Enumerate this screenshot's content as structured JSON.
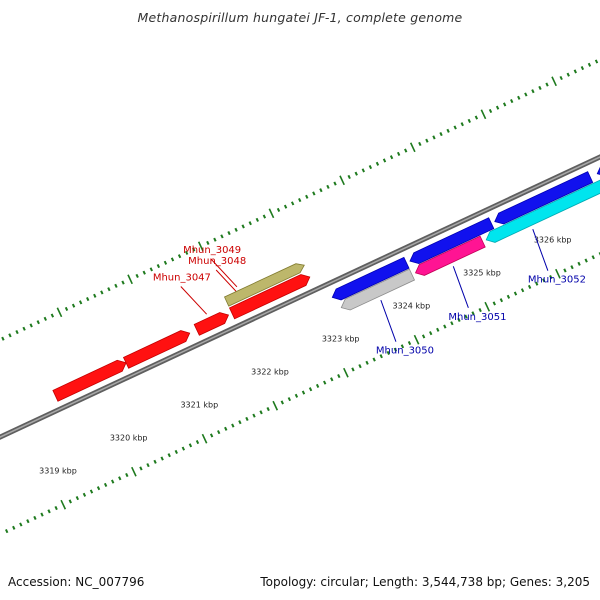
{
  "header": {
    "title": "Methanospirillum hungatei JF-1, complete genome"
  },
  "footer": {
    "accession": "Accession: NC_007796",
    "summary": "Topology: circular; Length: 3,544,738 bp; Genes: 3,205"
  },
  "colors": {
    "forward_label": "#cc0000",
    "reverse_label": "#0000aa",
    "backbone": "#7a7a7a",
    "tick": "#1e7a1e"
  },
  "ticks": [
    {
      "kbp": 3319,
      "label": "3319 kbp"
    },
    {
      "kbp": 3320,
      "label": "3320 kbp"
    },
    {
      "kbp": 3321,
      "label": "3321 kbp"
    },
    {
      "kbp": 3322,
      "label": "3322 kbp"
    },
    {
      "kbp": 3323,
      "label": "3323 kbp"
    },
    {
      "kbp": 3324,
      "label": "3324 kbp"
    },
    {
      "kbp": 3325,
      "label": "3325 kbp"
    },
    {
      "kbp": 3326,
      "label": "3326 kbp"
    }
  ],
  "forward_genes": [
    {
      "start": 3319.5,
      "end": 3320.5,
      "color": "#ff1111",
      "label": ""
    },
    {
      "start": 3320.5,
      "end": 3321.4,
      "color": "#ff1111",
      "label": ""
    },
    {
      "start": 3321.5,
      "end": 3321.95,
      "color": "#ff1111",
      "label": "Mhun_3047"
    },
    {
      "start": 3322.0,
      "end": 3323.1,
      "color": "#ff1111",
      "label": "Mhun_3048"
    },
    {
      "start": 3322.0,
      "end": 3323.1,
      "color": "#bdb76b",
      "label": "Mhun_3049",
      "outer": true
    }
  ],
  "reverse_genes": [
    {
      "start": 3323.25,
      "end": 3324.3,
      "color": "#1111ee",
      "label": "",
      "lane": "inner"
    },
    {
      "start": 3323.3,
      "end": 3324.3,
      "color": "#c8c8c8",
      "label": "Mhun_3050",
      "lane": "outer"
    },
    {
      "start": 3324.35,
      "end": 3325.5,
      "color": "#1111ee",
      "label": "",
      "lane": "inner"
    },
    {
      "start": 3324.35,
      "end": 3325.3,
      "color": "#ff1493",
      "label": "Mhun_3051",
      "lane": "outer"
    },
    {
      "start": 3325.55,
      "end": 3326.9,
      "color": "#1111ee",
      "label": "",
      "lane": "inner"
    },
    {
      "start": 3325.35,
      "end": 3327.0,
      "color": "#00e5ee",
      "label": "Mhun_3052",
      "lane": "outer"
    },
    {
      "start": 3327.0,
      "end": 3327.6,
      "color": "#1111ee",
      "label": "",
      "lane": "inner"
    }
  ]
}
